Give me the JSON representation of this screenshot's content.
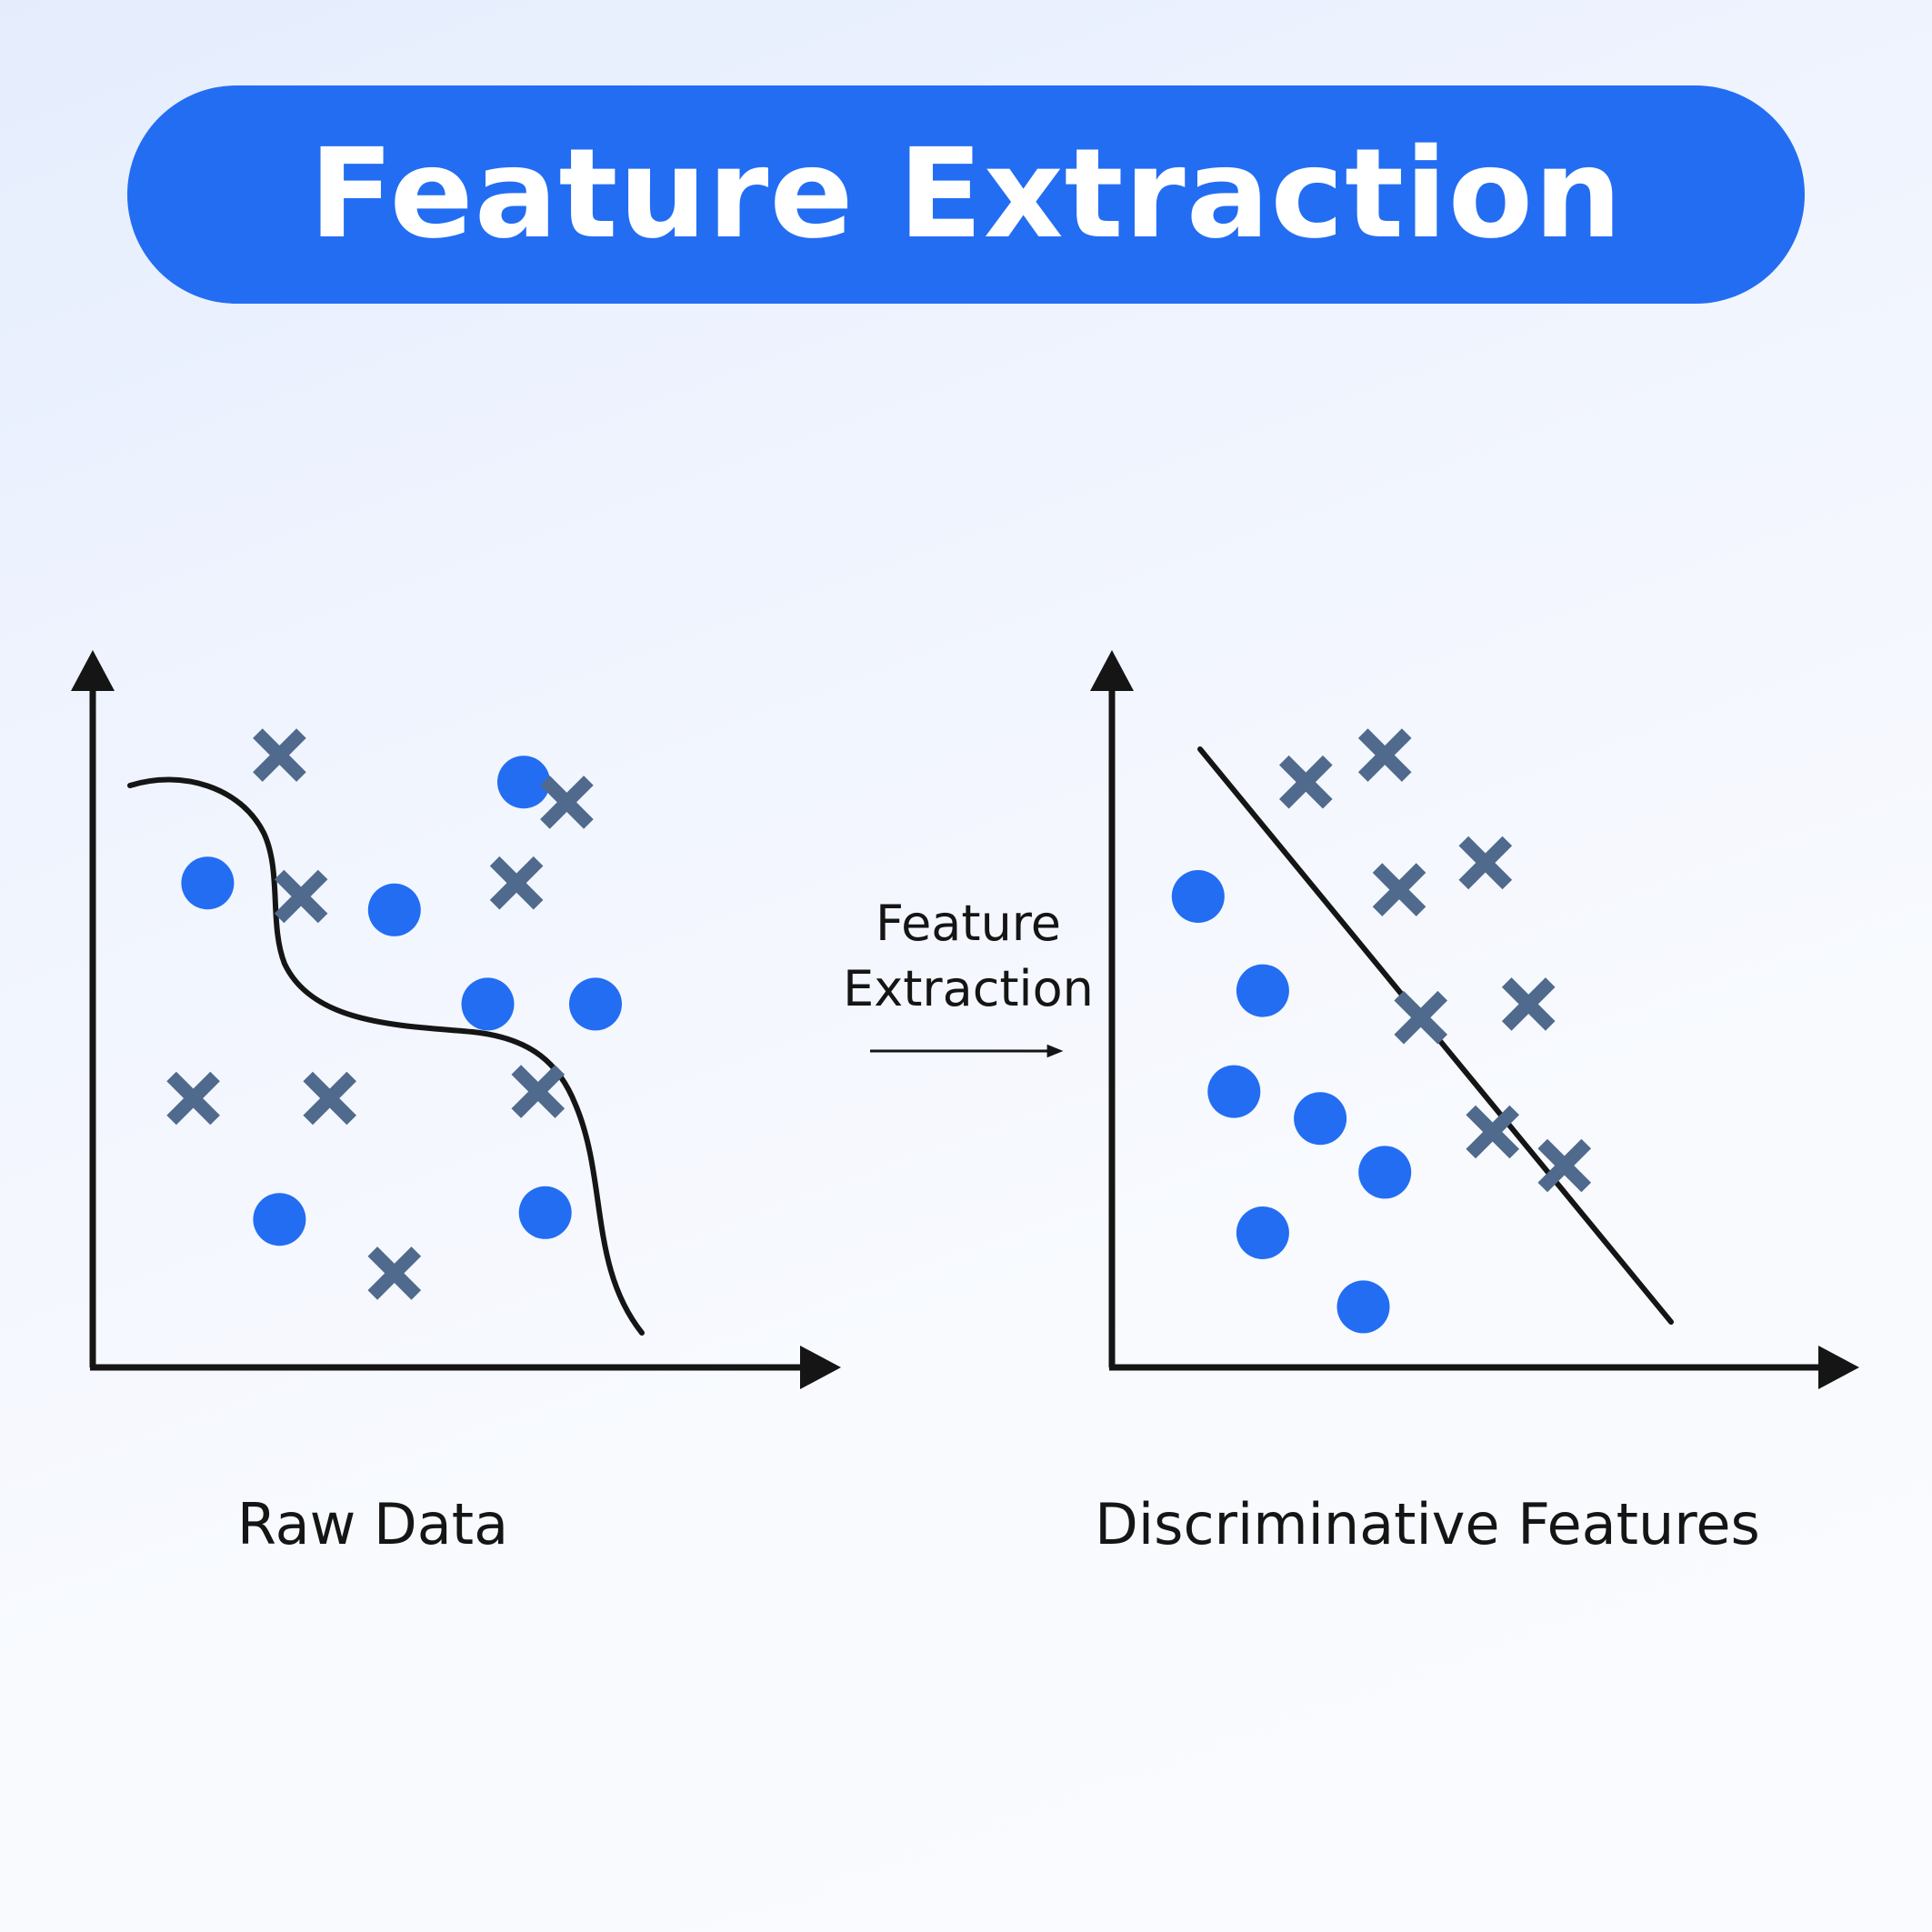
{
  "title": "Feature Extraction",
  "arrow_label": {
    "line1": "Feature",
    "line2": "Extraction"
  },
  "colors": {
    "banner": "#236df3",
    "banner_text": "#ffffff",
    "circle": "#236df3",
    "cross": "#4f6a8c",
    "axis": "#151515",
    "boundary": "#151515"
  },
  "panels": [
    {
      "label": "Raw Data",
      "boundary": "curved",
      "circles": [
        [
          1.6,
          7.2
        ],
        [
          6.0,
          8.7
        ],
        [
          4.2,
          6.8
        ],
        [
          5.5,
          5.4
        ],
        [
          7.0,
          5.4
        ],
        [
          2.6,
          2.2
        ],
        [
          6.3,
          2.3
        ]
      ],
      "crosses": [
        [
          2.6,
          9.1
        ],
        [
          6.6,
          8.4
        ],
        [
          2.9,
          7.0
        ],
        [
          5.9,
          7.2
        ],
        [
          1.4,
          4.0
        ],
        [
          3.3,
          4.0
        ],
        [
          6.2,
          4.1
        ],
        [
          4.2,
          1.4
        ]
      ]
    },
    {
      "label": "Discriminative Features",
      "boundary": "linear",
      "circles": [
        [
          1.2,
          7.0
        ],
        [
          2.1,
          5.6
        ],
        [
          1.7,
          4.1
        ],
        [
          2.9,
          3.7
        ],
        [
          3.8,
          2.9
        ],
        [
          2.1,
          2.0
        ],
        [
          3.5,
          0.9
        ]
      ],
      "crosses": [
        [
          2.7,
          8.7
        ],
        [
          3.8,
          9.1
        ],
        [
          4.0,
          7.1
        ],
        [
          5.2,
          7.5
        ],
        [
          4.3,
          5.2
        ],
        [
          5.8,
          5.4
        ],
        [
          5.3,
          3.5
        ],
        [
          6.3,
          3.0
        ]
      ]
    }
  ]
}
